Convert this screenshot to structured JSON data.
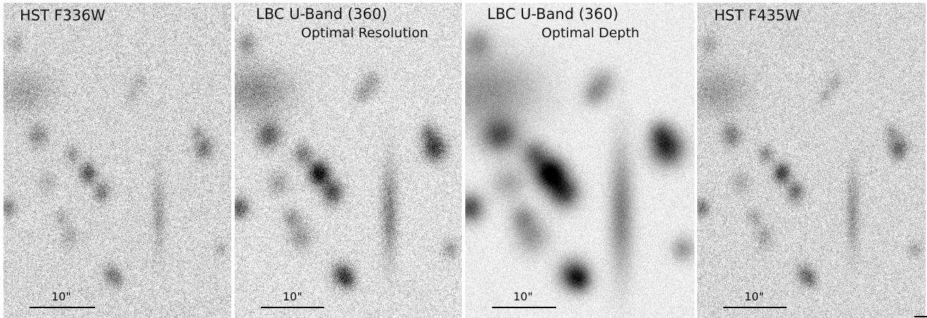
{
  "figure": {
    "panels": [
      {
        "title": "HST F336W",
        "subtitle": "",
        "scalebar_label": "10\"",
        "style": {
          "bg": 214,
          "noise": 62,
          "blur": 0.4,
          "gain": 0.6
        }
      },
      {
        "title": "LBC U-Band (360)",
        "subtitle": "Optimal Resolution",
        "scalebar_label": "10\"",
        "style": {
          "bg": 224,
          "noise": 58,
          "blur": 0.8,
          "gain": 1.0
        }
      },
      {
        "title": "LBC U-Band (360)",
        "subtitle": "Optimal Depth",
        "scalebar_label": "10\"",
        "style": {
          "bg": 236,
          "noise": 26,
          "blur": 1.6,
          "gain": 1.15
        }
      },
      {
        "title": "HST F435W",
        "subtitle": "",
        "scalebar_label": "10\"",
        "style": {
          "bg": 214,
          "noise": 54,
          "blur": 0.4,
          "gain": 0.7
        }
      }
    ]
  }
}
